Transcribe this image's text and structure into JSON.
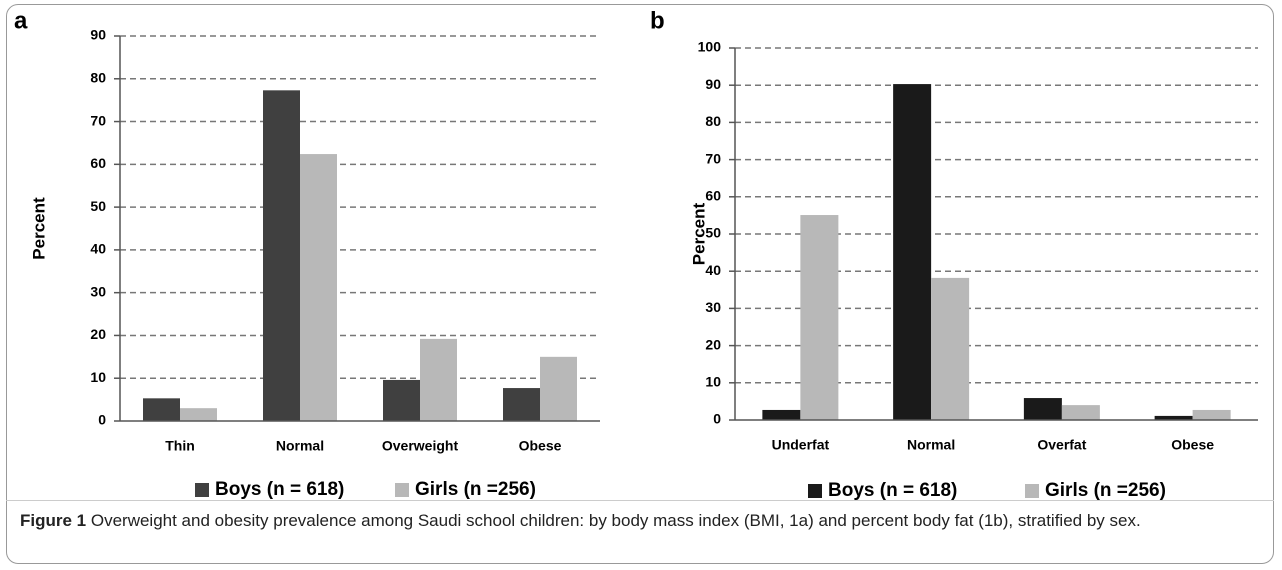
{
  "chart_data": [
    {
      "type": "bar",
      "panel": "a",
      "ylabel": "Percent",
      "categories": [
        "Thin",
        "Normal",
        "Overweight",
        "Obese"
      ],
      "series": [
        {
          "name": "Boys (n = 618)",
          "color": "#404040",
          "values": [
            5.3,
            77.3,
            9.6,
            7.7
          ]
        },
        {
          "name": "Girls (n =256)",
          "color": "#b8b8b8",
          "values": [
            3.0,
            62.4,
            19.2,
            15.0
          ]
        }
      ],
      "ylim": [
        0,
        90
      ],
      "yticks": [
        0,
        10,
        20,
        30,
        40,
        50,
        60,
        70,
        80,
        90
      ],
      "grid": true,
      "legend": "bottom"
    },
    {
      "type": "bar",
      "panel": "b",
      "ylabel": "Percent",
      "categories": [
        "Underfat",
        "Normal",
        "Overfat",
        "Obese"
      ],
      "series": [
        {
          "name": "Boys (n = 618)",
          "color": "#1a1a1a",
          "values": [
            2.7,
            90.3,
            5.9,
            1.1
          ]
        },
        {
          "name": "Girls (n =256)",
          "color": "#b8b8b8",
          "values": [
            55.1,
            38.2,
            4.0,
            2.7
          ]
        }
      ],
      "ylim": [
        0,
        100
      ],
      "yticks": [
        0,
        10,
        20,
        30,
        40,
        50,
        60,
        70,
        80,
        90,
        100
      ],
      "grid": true,
      "legend": "bottom"
    }
  ],
  "caption": {
    "label": "Figure 1",
    "text": "Overweight and obesity prevalence among Saudi school children: by body mass index (BMI, 1a) and percent body fat (1b), stratified by sex."
  }
}
